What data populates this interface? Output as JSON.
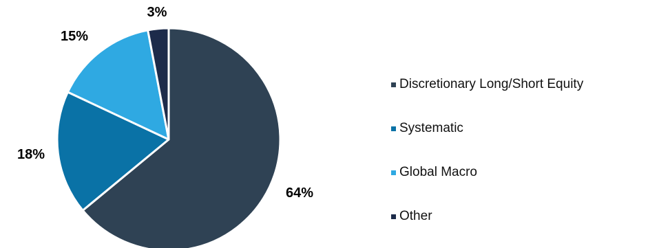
{
  "chart_data": {
    "type": "pie",
    "categories": [
      "Discretionary Long/Short Equity",
      "Systematic",
      "Global Macro",
      "Other"
    ],
    "values": [
      64,
      18,
      15,
      3
    ],
    "data_labels": [
      "64%",
      "18%",
      "15%",
      "3%"
    ],
    "colors": [
      "#2f4254",
      "#0a72a6",
      "#2fa9e2",
      "#1d2b4a"
    ],
    "start_angle_deg": 0,
    "direction": "clockwise",
    "legend_placement": "right"
  }
}
